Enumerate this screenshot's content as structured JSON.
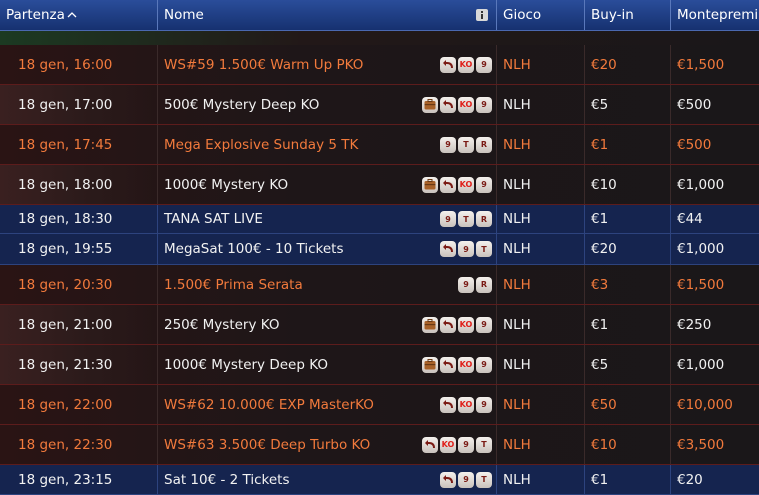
{
  "header": {
    "columns": [
      "Partenza",
      "Nome",
      "Gioco",
      "Buy-in",
      "Montepremi"
    ]
  },
  "rows": [
    {
      "start": "18 gen, 16:00",
      "name": "WS#59 1.500€ Warm Up PKO",
      "badges": [
        "KO",
        "9"
      ],
      "game": "NLH",
      "buyin": "€20",
      "prize": "€1,500"
    },
    {
      "start": "18 gen, 17:00",
      "name": "500€ Mystery Deep KO",
      "badges": [
        "KO",
        "9"
      ],
      "game": "NLH",
      "buyin": "€5",
      "prize": "€500"
    },
    {
      "start": "18 gen, 17:45",
      "name": "Mega Explosive Sunday 5 TK",
      "badges": [
        "9",
        "T",
        "R"
      ],
      "game": "NLH",
      "buyin": "€1",
      "prize": "€500"
    },
    {
      "start": "18 gen, 18:00",
      "name": "1000€ Mystery KO",
      "badges": [
        "KO",
        "9"
      ],
      "game": "NLH",
      "buyin": "€10",
      "prize": "€1,000"
    },
    {
      "start": "18 gen, 18:30",
      "name": "TANA SAT LIVE",
      "badges": [
        "9",
        "T",
        "R"
      ],
      "game": "NLH",
      "buyin": "€1",
      "prize": "€44"
    },
    {
      "start": "18 gen, 19:55",
      "name": "MegaSat 100€ - 10 Tickets",
      "badges": [
        "9",
        "T"
      ],
      "game": "NLH",
      "buyin": "€20",
      "prize": "€1,000"
    },
    {
      "start": "18 gen, 20:30",
      "name": "1.500€ Prima Serata",
      "badges": [
        "9",
        "R"
      ],
      "game": "NLH",
      "buyin": "€3",
      "prize": "€1,500"
    },
    {
      "start": "18 gen, 21:00",
      "name": "250€ Mystery KO",
      "badges": [
        "KO",
        "9"
      ],
      "game": "NLH",
      "buyin": "€1",
      "prize": "€250"
    },
    {
      "start": "18 gen, 21:30",
      "name": "1000€ Mystery Deep KO",
      "badges": [
        "KO",
        "9"
      ],
      "game": "NLH",
      "buyin": "€5",
      "prize": "€1,000"
    },
    {
      "start": "18 gen, 22:00",
      "name": "WS#62 10.000€ EXP MasterKO",
      "badges": [
        "KO",
        "9"
      ],
      "game": "NLH",
      "buyin": "€50",
      "prize": "€10,000"
    },
    {
      "start": "18 gen, 22:30",
      "name": "WS#63 3.500€ Deep Turbo KO",
      "badges": [
        "KO",
        "9",
        "T"
      ],
      "game": "NLH",
      "buyin": "€10",
      "prize": "€3,500"
    },
    {
      "start": "18 gen, 23:15",
      "name": "Sat 10€ - 2 Tickets",
      "badges": [
        "9",
        "T"
      ],
      "game": "NLH",
      "buyin": "€1",
      "prize": "€20"
    }
  ]
}
